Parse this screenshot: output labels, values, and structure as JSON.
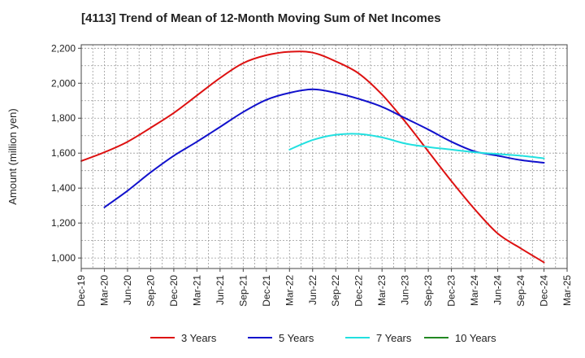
{
  "chart_data": {
    "type": "line",
    "title": "[4113]  Trend of Mean of 12-Month Moving Sum of Net Incomes",
    "xlabel": "",
    "ylabel": "Amount (million yen)",
    "ylim": [
      940,
      2220
    ],
    "yticks": [
      1000,
      1200,
      1400,
      1600,
      1800,
      2000,
      2200
    ],
    "ytick_labels": [
      "1,000",
      "1,200",
      "1,400",
      "1,600",
      "1,800",
      "2,000",
      "2,200"
    ],
    "categories": [
      "Dec-19",
      "Mar-20",
      "Jun-20",
      "Sep-20",
      "Dec-20",
      "Mar-21",
      "Jun-21",
      "Sep-21",
      "Dec-21",
      "Mar-22",
      "Jun-22",
      "Sep-22",
      "Dec-22",
      "Mar-23",
      "Jun-23",
      "Sep-23",
      "Dec-23",
      "Mar-24",
      "Jun-24",
      "Sep-24",
      "Dec-24",
      "Mar-25"
    ],
    "grid": true,
    "legend_position": "bottom",
    "series": [
      {
        "name": "3 Years",
        "color": "#dd1111",
        "values": [
          1555,
          1605,
          1665,
          1745,
          1830,
          1930,
          2030,
          2115,
          2160,
          2180,
          2175,
          2125,
          2055,
          1935,
          1780,
          1610,
          1440,
          1280,
          1140,
          1055,
          975,
          null
        ]
      },
      {
        "name": "5 Years",
        "color": "#1111cc",
        "values": [
          null,
          1290,
          1385,
          1490,
          1585,
          1665,
          1750,
          1835,
          1905,
          1945,
          1965,
          1945,
          1910,
          1865,
          1800,
          1735,
          1665,
          1610,
          1585,
          1560,
          1545,
          null
        ]
      },
      {
        "name": "7 Years",
        "color": "#22e0e0",
        "values": [
          null,
          null,
          null,
          null,
          null,
          null,
          null,
          null,
          null,
          1620,
          1675,
          1705,
          1710,
          1690,
          1655,
          1635,
          1620,
          1605,
          1595,
          1585,
          1570,
          null
        ]
      },
      {
        "name": "10 Years",
        "color": "#228822",
        "values": [
          null,
          null,
          null,
          null,
          null,
          null,
          null,
          null,
          null,
          null,
          null,
          null,
          null,
          null,
          null,
          null,
          null,
          null,
          null,
          null,
          null,
          null
        ]
      }
    ]
  }
}
